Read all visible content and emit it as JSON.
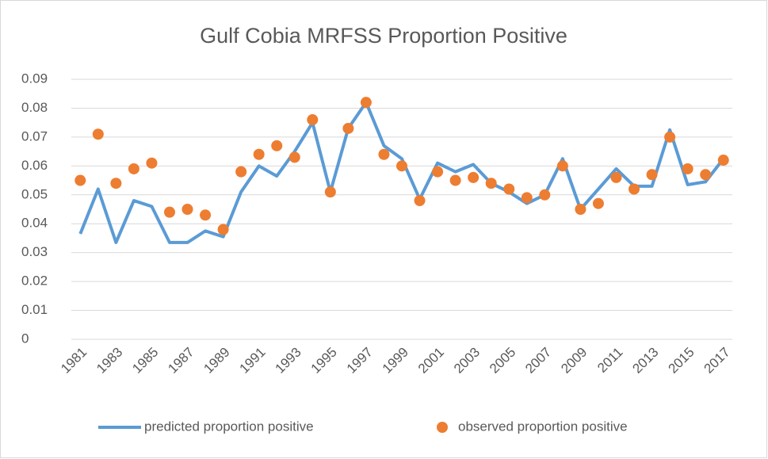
{
  "chart_data": {
    "type": "line-scatter",
    "title": "Gulf Cobia MRFSS Proportion Positive",
    "categories": [
      "1981",
      null,
      "1983",
      null,
      "1985",
      null,
      "1987",
      null,
      "1989",
      null,
      "1991",
      null,
      "1993",
      null,
      "1995",
      null,
      "1997",
      null,
      "1999",
      null,
      "2001",
      null,
      "2003",
      null,
      "2005",
      null,
      "2007",
      null,
      "2009",
      null,
      "2011",
      null,
      "2013",
      null,
      "2015",
      null,
      "2017"
    ],
    "series": [
      {
        "name": "predicted proportion positive",
        "color": "#5b9bd5",
        "kind": "line",
        "values": [
          0.0365,
          0.052,
          0.0335,
          0.048,
          0.046,
          0.0335,
          0.0335,
          0.0375,
          0.0355,
          0.051,
          0.06,
          0.0565,
          0.065,
          0.075,
          0.051,
          0.073,
          0.082,
          0.067,
          0.0625,
          0.0485,
          0.061,
          0.058,
          0.0605,
          0.054,
          0.051,
          0.047,
          0.05,
          0.0625,
          0.045,
          0.052,
          0.059,
          0.053,
          0.053,
          0.0725,
          0.0535,
          0.0545,
          0.0625
        ]
      },
      {
        "name": "observed proportion positive",
        "color": "#ed7d31",
        "kind": "scatter",
        "values": [
          0.055,
          0.071,
          0.054,
          0.059,
          0.061,
          0.044,
          0.045,
          0.043,
          0.038,
          0.058,
          0.064,
          0.067,
          0.063,
          0.076,
          0.051,
          0.073,
          0.082,
          0.064,
          0.06,
          0.048,
          0.058,
          0.055,
          0.056,
          0.054,
          0.052,
          0.049,
          0.05,
          0.06,
          0.045,
          0.047,
          0.056,
          0.052,
          0.057,
          0.07,
          0.059,
          0.057,
          0.062
        ]
      }
    ],
    "ylim": [
      0,
      0.09
    ],
    "yticks": [
      0,
      0.01,
      0.02,
      0.03,
      0.04,
      0.05,
      0.06,
      0.07,
      0.08,
      0.09
    ],
    "grid": true,
    "legend": "bottom"
  }
}
